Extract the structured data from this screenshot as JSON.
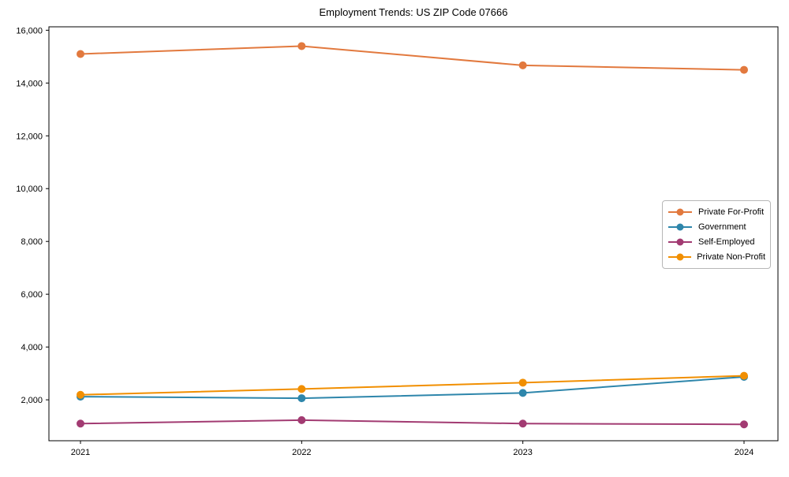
{
  "chart_data": {
    "type": "line",
    "title": "Employment Trends: US ZIP Code 07666",
    "x": [
      2021,
      2022,
      2023,
      2024
    ],
    "x_tick_labels": [
      "2021",
      "2022",
      "2023",
      "2024"
    ],
    "y_ticks": [
      2000,
      4000,
      6000,
      8000,
      10000,
      12000,
      14000,
      16000
    ],
    "y_tick_labels": [
      "2,000",
      "4,000",
      "6,000",
      "8,000",
      "10,000",
      "12,000",
      "14,000",
      "16,000"
    ],
    "ylim": [
      450,
      16130
    ],
    "grid": false,
    "legend_position": "center-right",
    "marker": "circle",
    "series": [
      {
        "name": "Private For-Profit",
        "color": "#E2793E",
        "values": [
          15100,
          15400,
          14670,
          14500
        ]
      },
      {
        "name": "Government",
        "color": "#2E86AB",
        "values": [
          2120,
          2060,
          2260,
          2870
        ]
      },
      {
        "name": "Self-Employed",
        "color": "#A23B72",
        "values": [
          1100,
          1230,
          1100,
          1070
        ]
      },
      {
        "name": "Private Non-Profit",
        "color": "#F18F01",
        "values": [
          2190,
          2410,
          2650,
          2910
        ]
      }
    ]
  }
}
